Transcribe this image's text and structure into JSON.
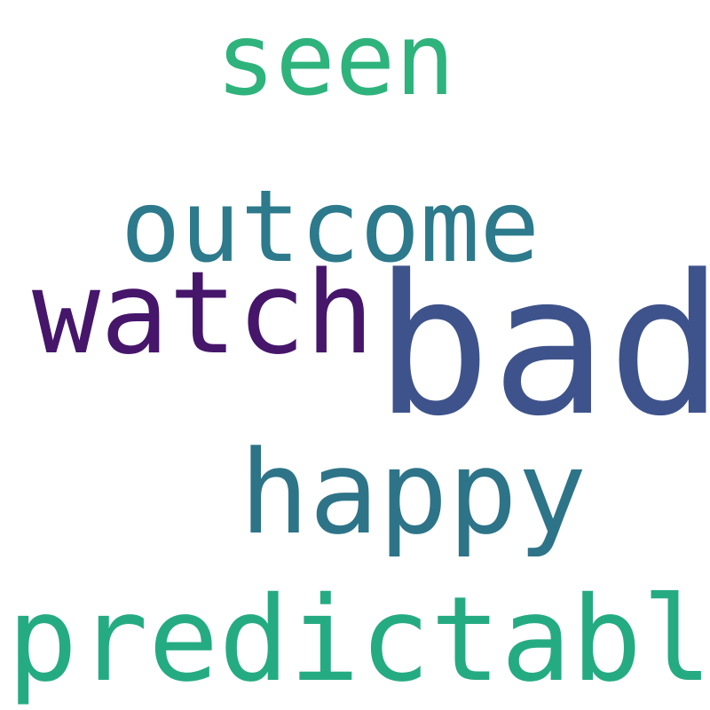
{
  "words": [
    {
      "id": "seen",
      "text": "seen",
      "color": "#2eb37c"
    },
    {
      "id": "outcome",
      "text": "outcome",
      "color": "#2c7a8c"
    },
    {
      "id": "watch",
      "text": "watch",
      "color": "#46166b"
    },
    {
      "id": "bad",
      "text": "bad",
      "color": "#3e538b"
    },
    {
      "id": "happy",
      "text": "happy",
      "color": "#2e7489"
    },
    {
      "id": "predictable",
      "text": "predictable",
      "color": "#25ab82"
    }
  ]
}
